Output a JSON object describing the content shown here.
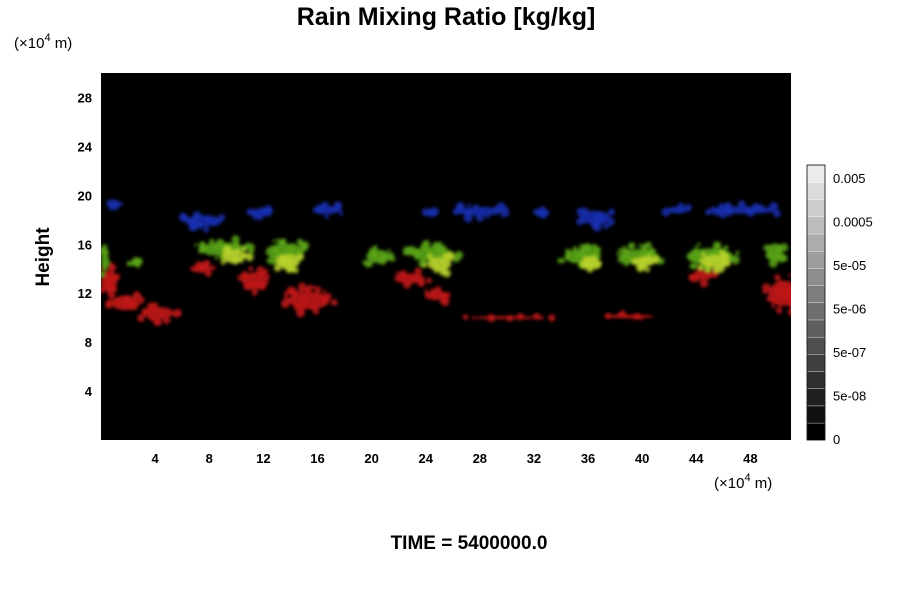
{
  "chart_data": {
    "type": "heatmap",
    "title": "Rain Mixing Ratio [kg/kg]",
    "ylabel": "Height",
    "y_unit": "(×10",
    "y_unit_exp": "4",
    "y_unit_tail": " m)",
    "x_unit": "(×10",
    "x_unit_exp": "4",
    "x_unit_tail": " m)",
    "xlim": [
      0,
      51
    ],
    "ylim": [
      0,
      30
    ],
    "x_ticks": [
      4,
      8,
      12,
      16,
      20,
      24,
      28,
      32,
      36,
      40,
      44,
      48
    ],
    "y_ticks": [
      4,
      8,
      12,
      16,
      20,
      24,
      28
    ],
    "background": "#000000",
    "colorbar": {
      "labels": [
        "0.005",
        "0.0005",
        "5e-05",
        "5e-06",
        "5e-07",
        "5e-08",
        "0"
      ],
      "levels": 16
    },
    "layers": [
      {
        "color": "#1a2fb0",
        "clusters": [
          {
            "x": 1.0,
            "y": 19.3,
            "w": 0.9,
            "h": 0.6
          },
          {
            "x": 7.6,
            "y": 17.9,
            "w": 3.6,
            "h": 1.5
          },
          {
            "x": 11.8,
            "y": 18.6,
            "w": 2.2,
            "h": 1.1
          },
          {
            "x": 16.6,
            "y": 18.8,
            "w": 2.6,
            "h": 1.2
          },
          {
            "x": 24.4,
            "y": 18.6,
            "w": 1.4,
            "h": 0.6
          },
          {
            "x": 28.0,
            "y": 18.7,
            "w": 4.6,
            "h": 1.2
          },
          {
            "x": 32.6,
            "y": 18.6,
            "w": 1.2,
            "h": 0.7
          },
          {
            "x": 36.5,
            "y": 18.2,
            "w": 3.0,
            "h": 1.8
          },
          {
            "x": 42.6,
            "y": 18.8,
            "w": 2.0,
            "h": 0.9
          },
          {
            "x": 47.6,
            "y": 18.8,
            "w": 6.2,
            "h": 1.0
          }
        ]
      },
      {
        "color": "#c21818",
        "clusters": [
          {
            "x": 0.6,
            "y": 13.0,
            "w": 1.6,
            "h": 3.0
          },
          {
            "x": 1.8,
            "y": 11.2,
            "w": 2.8,
            "h": 2.0
          },
          {
            "x": 4.2,
            "y": 10.4,
            "w": 3.2,
            "h": 1.6
          },
          {
            "x": 7.4,
            "y": 14.0,
            "w": 2.2,
            "h": 1.0
          },
          {
            "x": 11.4,
            "y": 13.0,
            "w": 2.6,
            "h": 2.4
          },
          {
            "x": 15.4,
            "y": 11.4,
            "w": 4.0,
            "h": 2.4
          },
          {
            "x": 22.8,
            "y": 13.2,
            "w": 3.0,
            "h": 1.4
          },
          {
            "x": 24.8,
            "y": 11.8,
            "w": 2.4,
            "h": 1.2
          },
          {
            "x": 30.0,
            "y": 10.0,
            "w": 7.0,
            "h": 0.4
          },
          {
            "x": 39.0,
            "y": 10.1,
            "w": 5.0,
            "h": 0.5
          },
          {
            "x": 44.5,
            "y": 13.5,
            "w": 2.0,
            "h": 1.4
          },
          {
            "x": 50.5,
            "y": 12.0,
            "w": 3.0,
            "h": 3.4
          }
        ]
      },
      {
        "color": "#5aa514",
        "clusters": [
          {
            "x": 0.3,
            "y": 14.6,
            "w": 0.8,
            "h": 2.6
          },
          {
            "x": 2.5,
            "y": 14.4,
            "w": 1.2,
            "h": 0.6
          },
          {
            "x": 9.0,
            "y": 15.6,
            "w": 4.5,
            "h": 1.8
          },
          {
            "x": 13.6,
            "y": 15.4,
            "w": 3.8,
            "h": 2.2
          },
          {
            "x": 20.5,
            "y": 15.0,
            "w": 2.4,
            "h": 1.8
          },
          {
            "x": 24.5,
            "y": 15.2,
            "w": 4.0,
            "h": 2.0
          },
          {
            "x": 35.6,
            "y": 15.0,
            "w": 3.6,
            "h": 2.0
          },
          {
            "x": 39.8,
            "y": 15.0,
            "w": 3.8,
            "h": 2.0
          },
          {
            "x": 45.0,
            "y": 15.0,
            "w": 4.6,
            "h": 2.2
          },
          {
            "x": 49.8,
            "y": 15.4,
            "w": 1.6,
            "h": 2.2
          }
        ]
      },
      {
        "color": "#b9d12c",
        "clusters": [
          {
            "x": 9.8,
            "y": 15.0,
            "w": 2.4,
            "h": 1.8
          },
          {
            "x": 13.8,
            "y": 14.6,
            "w": 2.4,
            "h": 2.0
          },
          {
            "x": 25.0,
            "y": 14.4,
            "w": 2.4,
            "h": 1.8
          },
          {
            "x": 36.2,
            "y": 14.4,
            "w": 2.2,
            "h": 1.6
          },
          {
            "x": 40.2,
            "y": 14.6,
            "w": 2.0,
            "h": 1.4
          },
          {
            "x": 45.4,
            "y": 14.6,
            "w": 2.8,
            "h": 1.8
          }
        ]
      }
    ]
  },
  "caption": "TIME = 5400000.0"
}
